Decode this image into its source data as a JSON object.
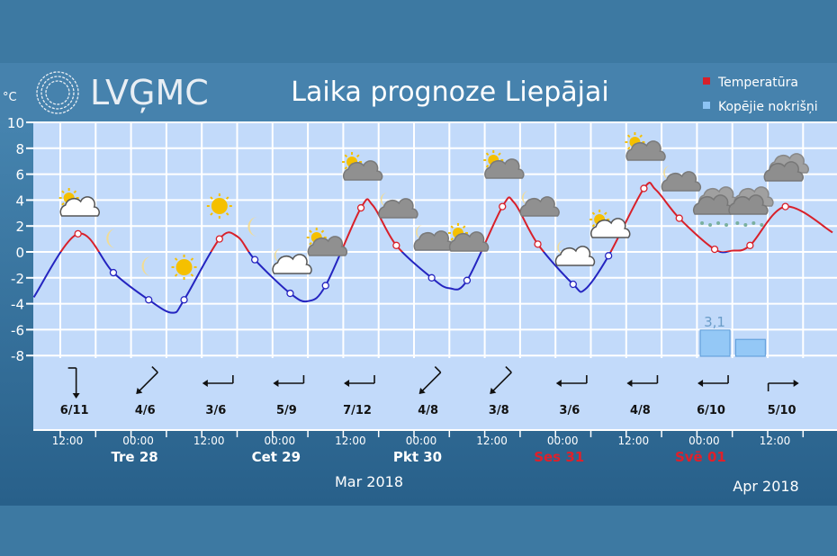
{
  "header": {
    "logo_text": "LVĢMC",
    "title": "Laika prognoze Liepājai",
    "unit": "°C"
  },
  "legend": [
    {
      "label": "Temperatūra",
      "color": "#d8202a"
    },
    {
      "label": "Kopējie nokrišņi",
      "color": "#8cc4f4"
    }
  ],
  "colors": {
    "above_zero": "#d8202a",
    "below_zero": "#2424c0",
    "plot_bg": "#c2dafa",
    "grid": "#ffffff",
    "weekend": "#e0202a"
  },
  "chart_data": {
    "type": "line",
    "ylabel": "°C",
    "ylim": [
      -8,
      10
    ],
    "yticks": [
      "10",
      "8",
      "6",
      "4",
      "2",
      "0",
      "-2",
      "-4",
      "-6",
      "-8"
    ],
    "grid": true,
    "legend_placement": "top-right",
    "temperature": [
      {
        "t": "03-27 07:30",
        "v": -3.5
      },
      {
        "t": "03-27 15:00",
        "v": 1.4,
        "m": 1
      },
      {
        "t": "03-27 21:00",
        "v": -1.6,
        "m": 1
      },
      {
        "t": "03-28 03:00",
        "v": -3.7,
        "m": 1
      },
      {
        "t": "03-28 07:00",
        "v": -4.7
      },
      {
        "t": "03-28 09:00",
        "v": -3.7,
        "m": 1
      },
      {
        "t": "03-28 15:00",
        "v": 1.0,
        "m": 1
      },
      {
        "t": "03-28 18:00",
        "v": 1.2
      },
      {
        "t": "03-28 21:00",
        "v": -0.6,
        "m": 1
      },
      {
        "t": "03-29 03:00",
        "v": -3.2,
        "m": 1
      },
      {
        "t": "03-29 06:00",
        "v": -3.8
      },
      {
        "t": "03-29 09:00",
        "v": -2.6,
        "m": 1
      },
      {
        "t": "03-29 15:00",
        "v": 3.4,
        "m": 1
      },
      {
        "t": "03-29 17:00",
        "v": 3.6
      },
      {
        "t": "03-29 21:00",
        "v": 0.5,
        "m": 1
      },
      {
        "t": "03-30 03:00",
        "v": -2.0,
        "m": 1
      },
      {
        "t": "03-30 06:00",
        "v": -2.8
      },
      {
        "t": "03-30 09:00",
        "v": -2.2,
        "m": 1
      },
      {
        "t": "03-30 15:00",
        "v": 3.5,
        "m": 1
      },
      {
        "t": "03-30 17:00",
        "v": 3.8
      },
      {
        "t": "03-30 21:00",
        "v": 0.6,
        "m": 1
      },
      {
        "t": "03-31 03:00",
        "v": -2.5,
        "m": 1
      },
      {
        "t": "03-31 05:00",
        "v": -2.9
      },
      {
        "t": "03-31 09:00",
        "v": -0.3,
        "m": 1
      },
      {
        "t": "03-31 15:00",
        "v": 4.9,
        "m": 1
      },
      {
        "t": "03-31 17:00",
        "v": 4.8
      },
      {
        "t": "03-31 21:00",
        "v": 2.6,
        "m": 1
      },
      {
        "t": "04-01 03:00",
        "v": 0.2,
        "m": 1
      },
      {
        "t": "04-01 06:00",
        "v": 0.1
      },
      {
        "t": "04-01 09:00",
        "v": 0.5,
        "m": 1
      },
      {
        "t": "04-01 15:00",
        "v": 3.5,
        "m": 1
      },
      {
        "t": "04-01 23:00",
        "v": 1.5
      }
    ],
    "precipitation": [
      {
        "t": "04-01 03:00",
        "v": 3.1,
        "label": "3,1"
      },
      {
        "t": "04-01 09:00",
        "v": 2.0,
        "label": ""
      }
    ]
  },
  "weather_icons": [
    {
      "t": "03-27 15:00",
      "icon": "sun-white-cloud"
    },
    {
      "t": "03-27 21:00",
      "icon": "moon"
    },
    {
      "t": "03-28 03:00",
      "icon": "moon"
    },
    {
      "t": "03-28 09:00",
      "icon": "sun"
    },
    {
      "t": "03-28 15:00",
      "icon": "sun"
    },
    {
      "t": "03-28 21:00",
      "icon": "moon"
    },
    {
      "t": "03-29 03:00",
      "icon": "moon-white-cloud"
    },
    {
      "t": "03-29 09:00",
      "icon": "sun-grey-cloud"
    },
    {
      "t": "03-29 15:00",
      "icon": "sun-grey-cloud"
    },
    {
      "t": "03-29 21:00",
      "icon": "moon-grey-cloud"
    },
    {
      "t": "03-30 03:00",
      "icon": "moon-grey-cloud"
    },
    {
      "t": "03-30 09:00",
      "icon": "sun-grey-cloud"
    },
    {
      "t": "03-30 15:00",
      "icon": "sun-grey-cloud"
    },
    {
      "t": "03-30 21:00",
      "icon": "moon-grey-cloud"
    },
    {
      "t": "03-31 03:00",
      "icon": "moon-white-cloud"
    },
    {
      "t": "03-31 09:00",
      "icon": "sun-white-cloud"
    },
    {
      "t": "03-31 15:00",
      "icon": "sun-grey-cloud"
    },
    {
      "t": "03-31 21:00",
      "icon": "moon-grey-cloud"
    },
    {
      "t": "04-01 03:00",
      "icon": "overcast-snow"
    },
    {
      "t": "04-01 09:00",
      "icon": "overcast-sleet"
    },
    {
      "t": "04-01 15:00",
      "icon": "overcast"
    }
  ],
  "wind": [
    {
      "t": "03-27 15:00",
      "label": "6/11",
      "arrow_deg": 180
    },
    {
      "t": "03-28 03:00",
      "label": "4/6",
      "arrow_deg": 225
    },
    {
      "t": "03-28 15:00",
      "label": "3/6",
      "arrow_deg": 270
    },
    {
      "t": "03-29 03:00",
      "label": "5/9",
      "arrow_deg": 270
    },
    {
      "t": "03-29 15:00",
      "label": "7/12",
      "arrow_deg": 270
    },
    {
      "t": "03-30 03:00",
      "label": "4/8",
      "arrow_deg": 225
    },
    {
      "t": "03-30 15:00",
      "label": "3/8",
      "arrow_deg": 225
    },
    {
      "t": "03-31 03:00",
      "label": "3/6",
      "arrow_deg": 270
    },
    {
      "t": "03-31 15:00",
      "label": "4/8",
      "arrow_deg": 270
    },
    {
      "t": "04-01 03:00",
      "label": "6/10",
      "arrow_deg": 270
    },
    {
      "t": "04-01 15:00",
      "label": "5/10",
      "arrow_deg": 90
    }
  ],
  "x_axis": {
    "times": [
      {
        "t": "03-27 12:00",
        "label": "12:00"
      },
      {
        "t": "03-28 00:00",
        "label": "00:00"
      },
      {
        "t": "03-28 12:00",
        "label": "12:00"
      },
      {
        "t": "03-29 00:00",
        "label": "00:00"
      },
      {
        "t": "03-29 12:00",
        "label": "12:00"
      },
      {
        "t": "03-30 00:00",
        "label": "00:00"
      },
      {
        "t": "03-30 12:00",
        "label": "12:00"
      },
      {
        "t": "03-31 00:00",
        "label": "00:00"
      },
      {
        "t": "03-31 12:00",
        "label": "12:00"
      },
      {
        "t": "04-01 00:00",
        "label": "00:00"
      },
      {
        "t": "04-01 12:00",
        "label": "12:00"
      }
    ],
    "days": [
      {
        "t": "03-28 00:00",
        "label": "Tre 28",
        "weekend": false
      },
      {
        "t": "03-29 00:00",
        "label": "Cet 29",
        "weekend": false
      },
      {
        "t": "03-30 00:00",
        "label": "Pkt 30",
        "weekend": false
      },
      {
        "t": "03-31 00:00",
        "label": "Ses 31",
        "weekend": true
      },
      {
        "t": "04-01 00:00",
        "label": "Svē 01",
        "weekend": true
      }
    ],
    "months": [
      "Mar 2018",
      "Apr 2018"
    ]
  }
}
